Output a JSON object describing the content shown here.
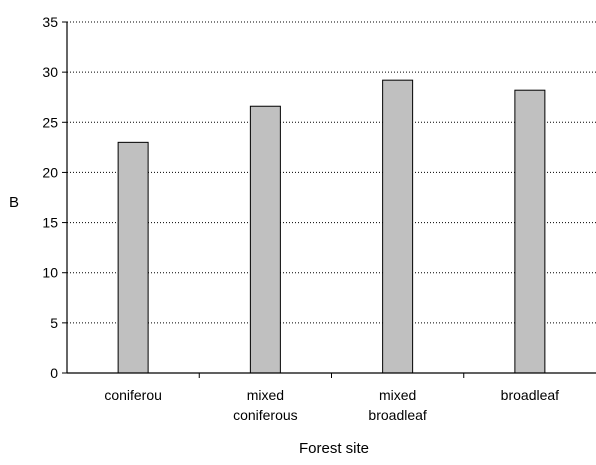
{
  "chart_data": {
    "type": "bar",
    "categories": [
      [
        "coniferou"
      ],
      [
        "mixed",
        "coniferous"
      ],
      [
        "mixed",
        "broadleaf"
      ],
      [
        "broadleaf"
      ]
    ],
    "values": [
      23.0,
      26.6,
      29.2,
      28.2
    ],
    "xlabel": "Forest site",
    "ylabel": "B",
    "ylim": [
      0,
      35
    ],
    "yticks": [
      0,
      5,
      10,
      15,
      20,
      25,
      30,
      35
    ],
    "grid": "horizontal dotted",
    "bar_color": "#c0c0c0",
    "bar_edge_color": "#000000"
  }
}
